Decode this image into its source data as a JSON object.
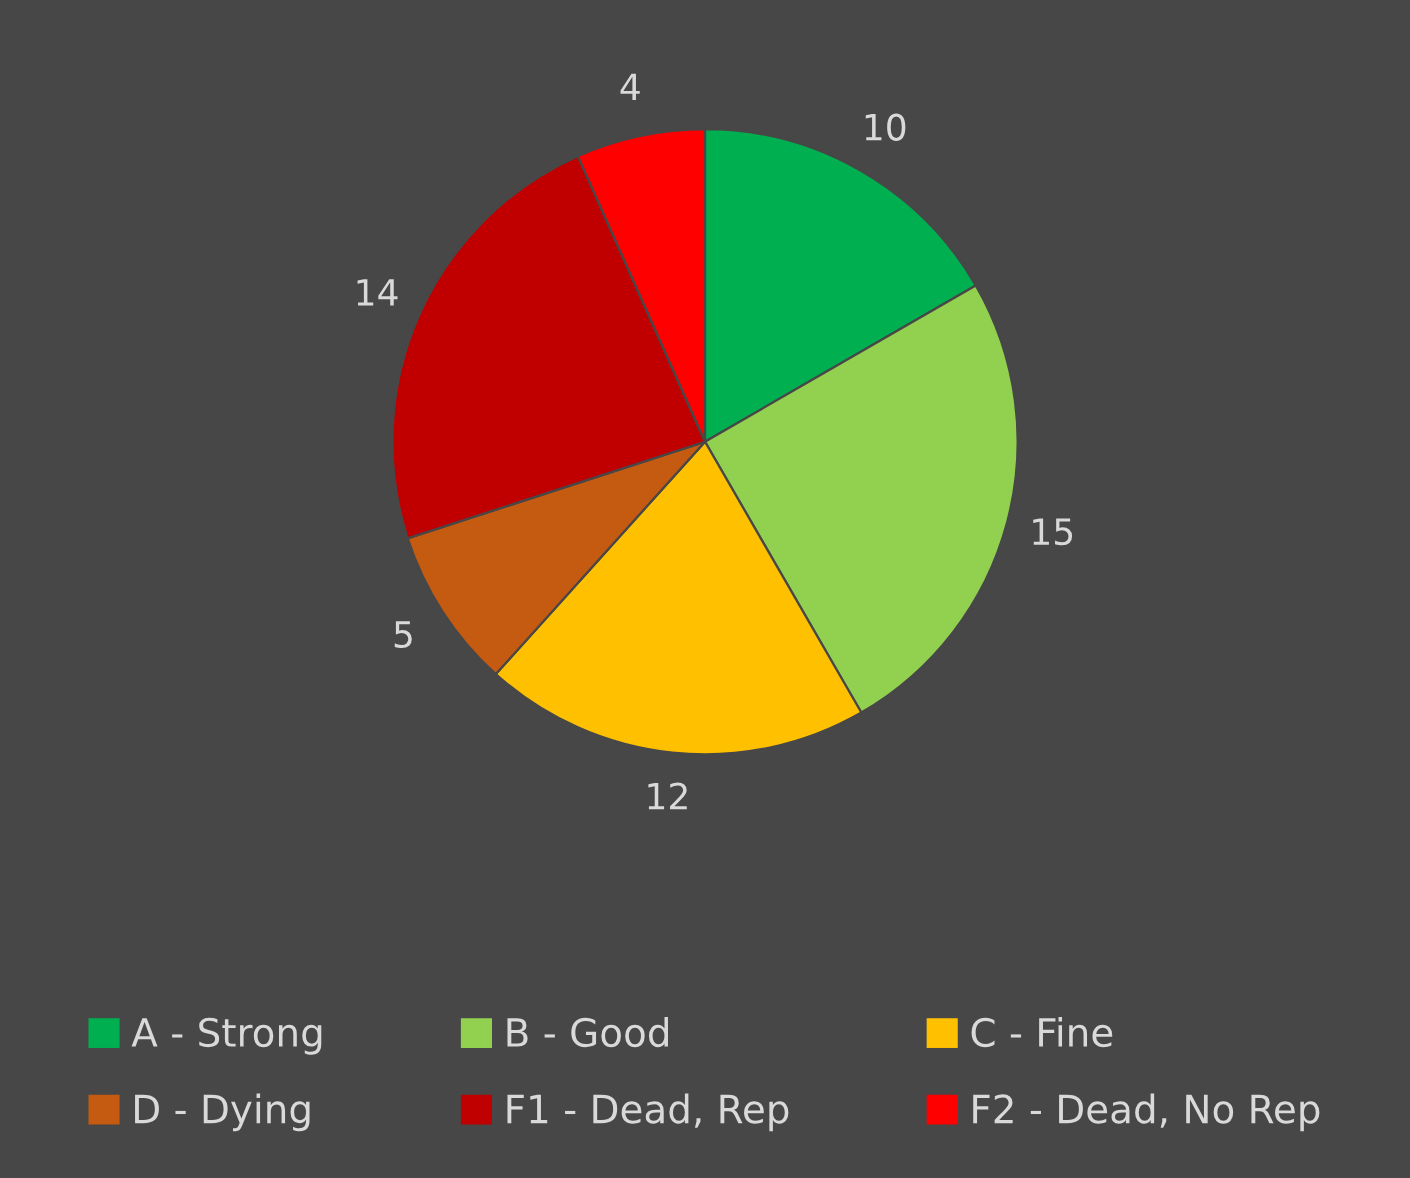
{
  "chart_data": {
    "type": "pie",
    "categories": [
      "A - Strong",
      "B - Good",
      "C - Fine",
      "D - Dying",
      "F1 - Dead, Rep",
      "F2 - Dead, No Rep"
    ],
    "values": [
      10,
      15,
      12,
      5,
      14,
      4
    ],
    "colors": [
      "#00b050",
      "#92d050",
      "#ffc000",
      "#c55a11",
      "#c00000",
      "#ff0000"
    ],
    "data_labels": true,
    "legend": "bottom"
  }
}
